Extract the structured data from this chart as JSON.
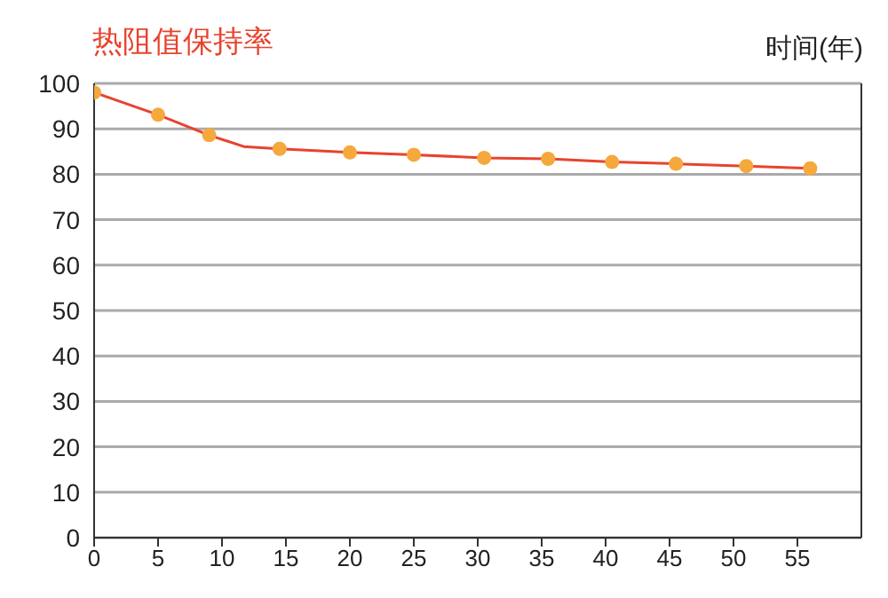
{
  "chart_data": {
    "type": "line",
    "title": "热阻值保持率",
    "xlabel": "时间(年)",
    "series": [
      {
        "marker": "none",
        "color": "#e8432e",
        "x": [
          0,
          5,
          9,
          11.7,
          14.5,
          20,
          25,
          30.5,
          35.5,
          40.5,
          45.5,
          51,
          56
        ],
        "values": [
          98,
          93.1,
          88.6,
          86.1,
          85.6,
          84.8,
          84.3,
          83.6,
          83.4,
          82.7,
          82.3,
          81.8,
          81.3
        ]
      },
      {
        "type": "scatter",
        "marker": "circle",
        "color": "#f5a83c",
        "x": [
          0,
          5,
          9,
          14.5,
          20,
          25,
          30.5,
          35.5,
          40.5,
          45.5,
          51,
          56
        ],
        "values": [
          98,
          93.1,
          88.6,
          85.6,
          84.8,
          84.3,
          83.6,
          83.4,
          82.7,
          82.3,
          81.8,
          81.3
        ]
      }
    ],
    "xlim": [
      0,
      60
    ],
    "xticks": [
      0,
      5,
      10,
      15,
      20,
      25,
      30,
      35,
      40,
      45,
      50,
      55
    ],
    "ylim": [
      0,
      100
    ],
    "yticks": [
      0,
      10,
      20,
      30,
      40,
      50,
      60,
      70,
      80,
      90,
      100
    ],
    "grid": "y"
  }
}
